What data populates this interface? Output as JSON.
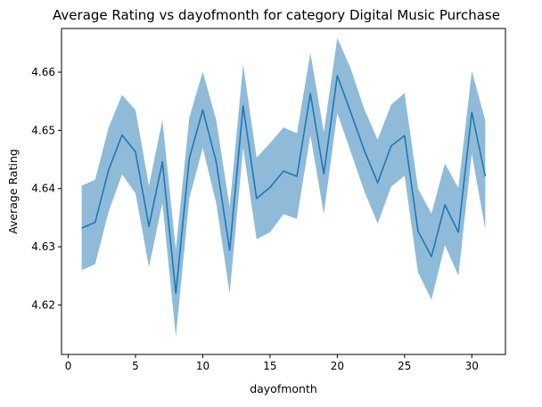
{
  "chart_data": {
    "type": "line",
    "title": "Average Rating vs dayofmonth for category Digital Music Purchase",
    "xlabel": "dayofmonth",
    "ylabel": "Average Rating",
    "xlim": [
      -0.5,
      32.5
    ],
    "ylim": [
      4.6115,
      4.6675
    ],
    "xticks": [
      0,
      5,
      10,
      15,
      20,
      25,
      30
    ],
    "xtick_labels": [
      "0",
      "5",
      "10",
      "15",
      "20",
      "25",
      "30"
    ],
    "yticks": [
      4.62,
      4.63,
      4.64,
      4.65,
      4.66
    ],
    "ytick_labels": [
      "4.62",
      "4.63",
      "4.64",
      "4.65",
      "4.66"
    ],
    "grid": false,
    "legend": "none",
    "colors": {
      "line": "#1f77b4",
      "band": "#1f77b4",
      "axis": "#000000"
    },
    "series": [
      {
        "x": [
          1,
          2,
          3,
          4,
          5,
          6,
          7,
          8,
          9,
          10,
          11,
          12,
          13,
          14,
          15,
          16,
          17,
          18,
          19,
          20,
          21,
          22,
          23,
          24,
          25,
          26,
          27,
          28,
          29,
          30,
          31
        ],
        "values": [
          4.6332,
          4.6342,
          4.6432,
          4.6492,
          4.6463,
          4.6335,
          4.6446,
          4.622,
          4.6452,
          4.6535,
          4.6446,
          4.6294,
          4.6542,
          4.6383,
          4.6402,
          4.643,
          4.6421,
          4.6563,
          4.6425,
          4.6594,
          4.6531,
          4.6466,
          4.641,
          4.6473,
          4.6491,
          4.6327,
          4.6283,
          4.6372,
          4.6325,
          4.6531,
          4.6421
        ],
        "lower": [
          4.626,
          4.627,
          4.636,
          4.6424,
          4.6392,
          4.6265,
          4.6375,
          4.6145,
          4.6383,
          4.647,
          4.6375,
          4.622,
          4.647,
          4.6313,
          4.6325,
          4.6356,
          4.6348,
          4.6492,
          4.6356,
          4.653,
          4.6463,
          4.6396,
          4.634,
          4.6403,
          4.6422,
          4.6256,
          4.6209,
          4.6303,
          4.625,
          4.646,
          4.633
        ],
        "upper": [
          4.6405,
          4.6415,
          4.6505,
          4.6561,
          4.6535,
          4.6405,
          4.6518,
          4.6295,
          4.6522,
          4.6601,
          4.6518,
          4.6368,
          4.6613,
          4.6453,
          4.6478,
          4.6505,
          4.6495,
          4.6633,
          4.6497,
          4.6659,
          4.6606,
          4.6537,
          4.6484,
          4.6544,
          4.6564,
          4.64,
          4.6357,
          4.6443,
          4.6401,
          4.6602,
          4.6517
        ]
      }
    ]
  }
}
